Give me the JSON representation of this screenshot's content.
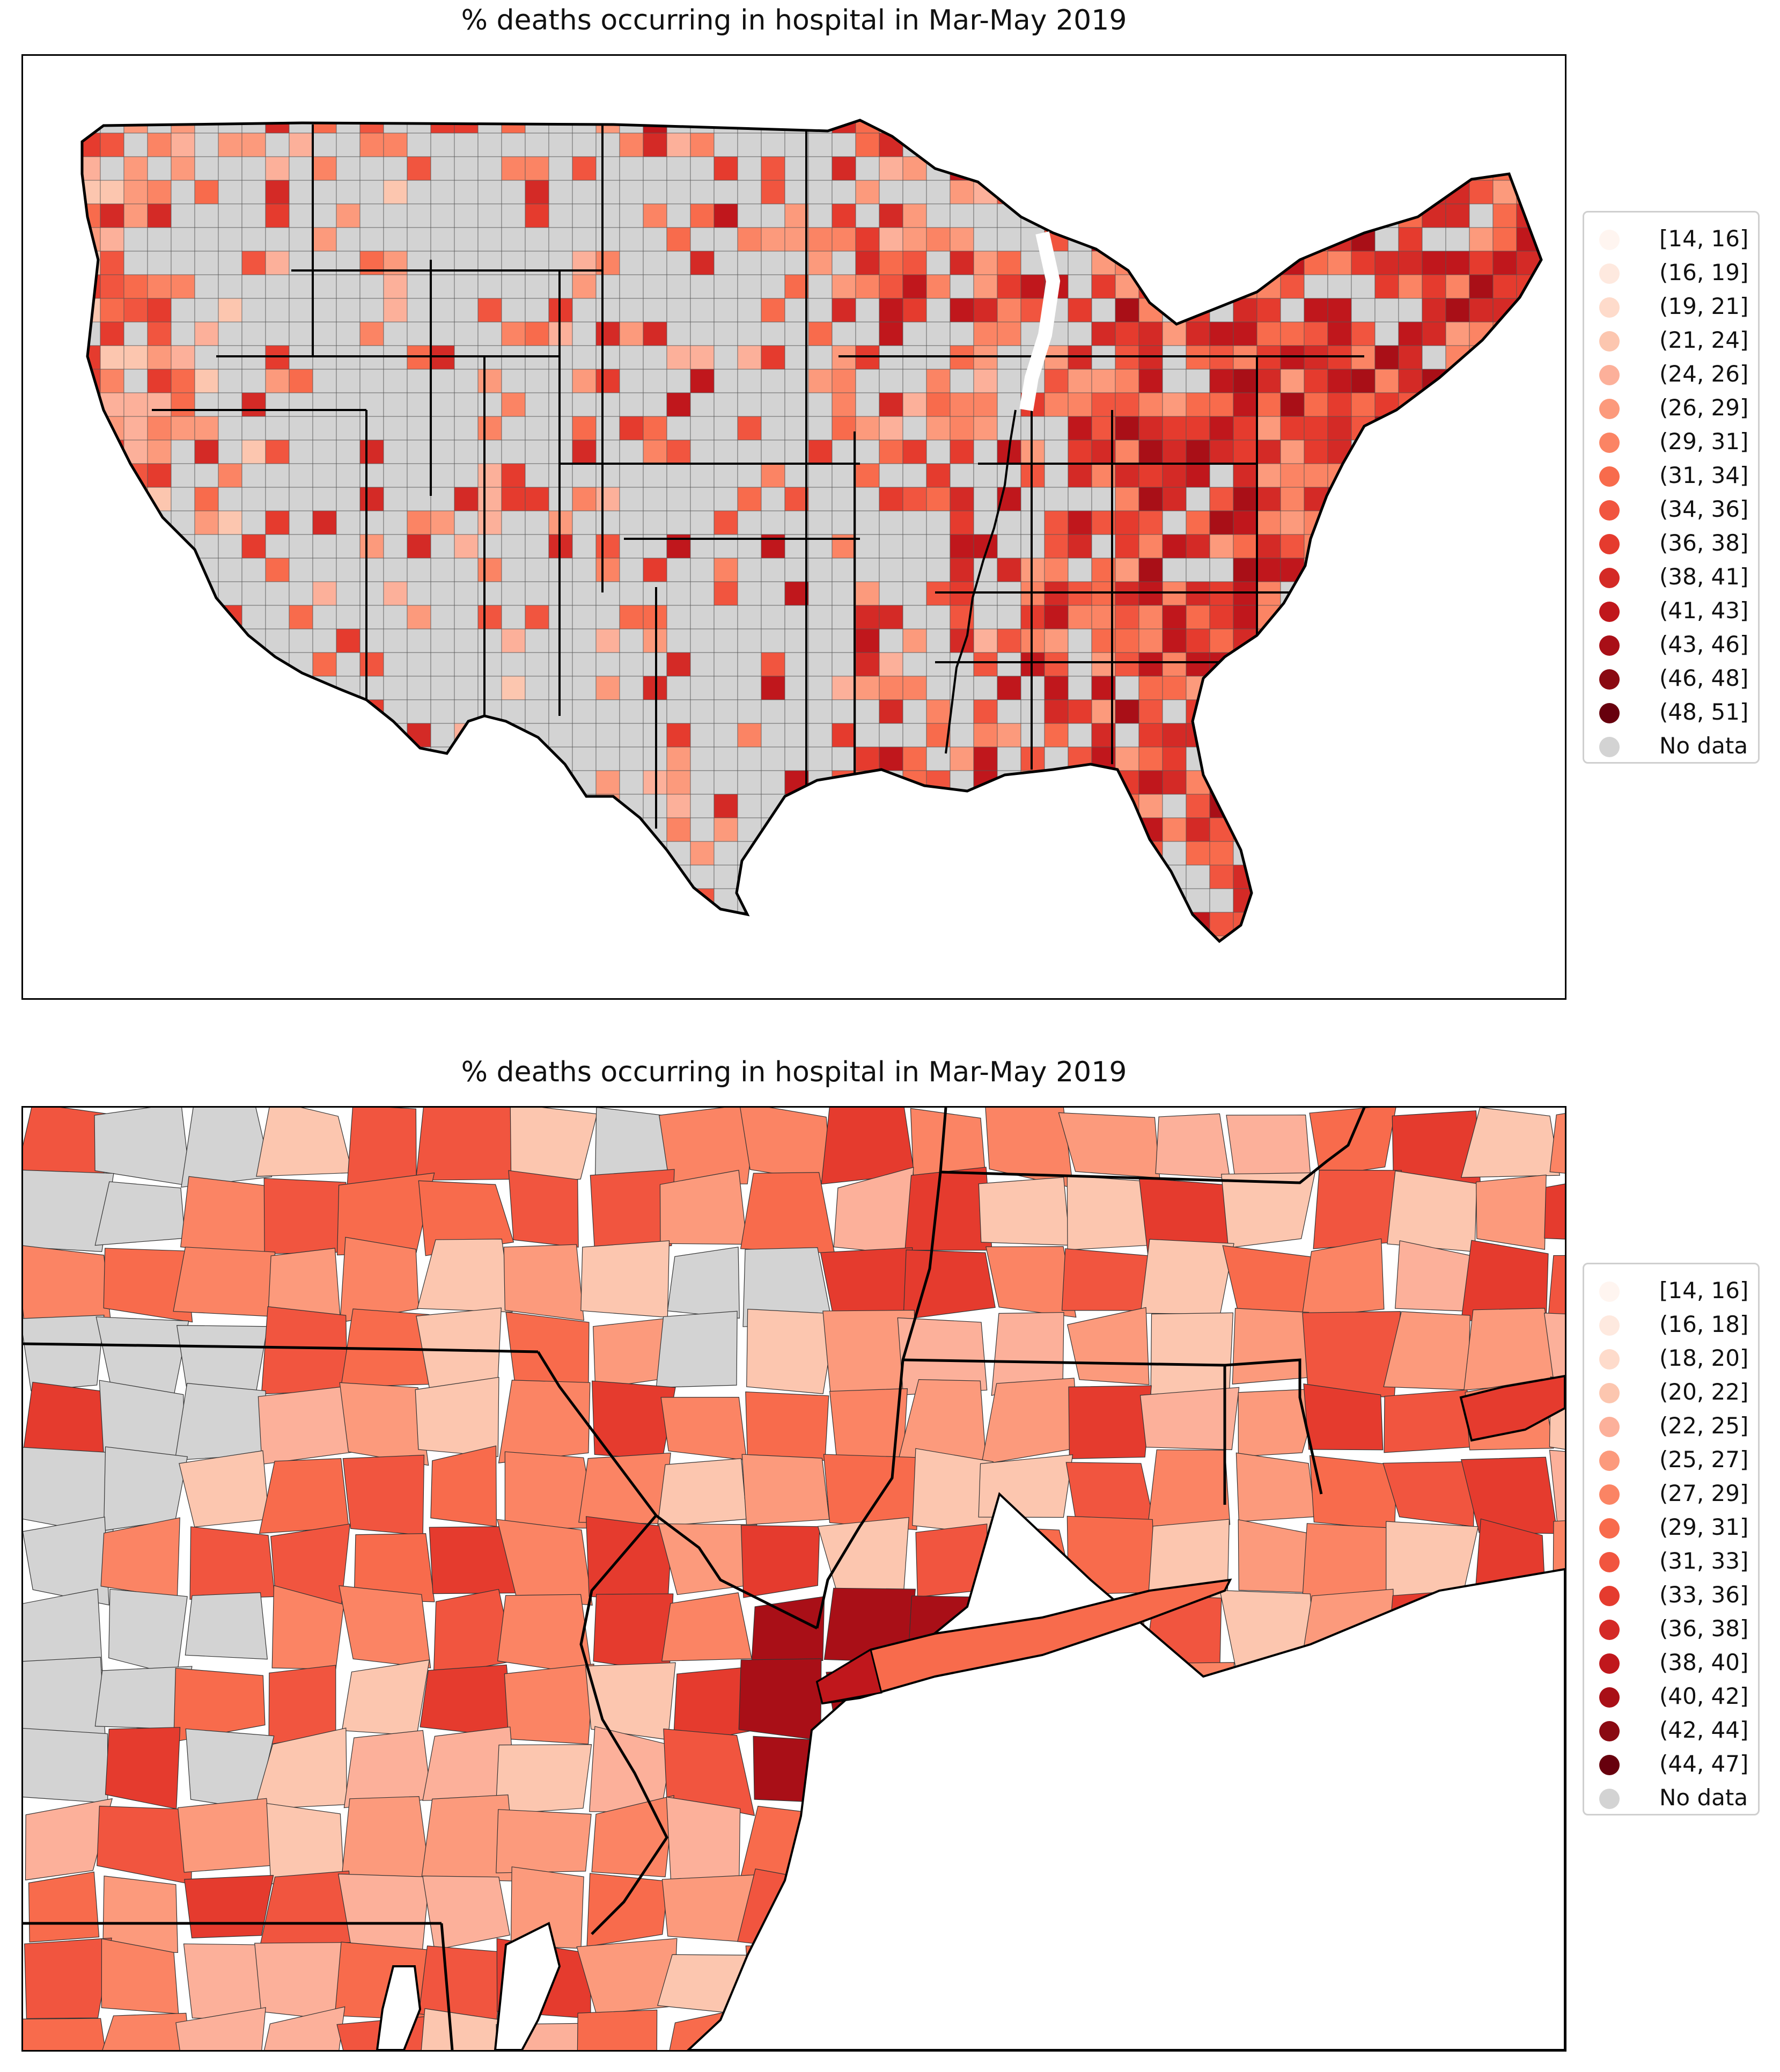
{
  "colors": {
    "no_data": "#d3d3d3",
    "border": "#000000",
    "background": "#ffffff"
  },
  "panels": [
    {
      "title": "% deaths occurring in hospital in Mar-May 2019",
      "region": "contiguous United States counties",
      "legend": [
        {
          "label": "[14, 16]",
          "color": "#fff5f0"
        },
        {
          "label": "(16, 19]",
          "color": "#fee9df"
        },
        {
          "label": "(19, 21]",
          "color": "#fedbcb"
        },
        {
          "label": "(21, 24]",
          "color": "#fcc6af"
        },
        {
          "label": "(24, 26]",
          "color": "#fcb09a"
        },
        {
          "label": "(26, 29]",
          "color": "#fc9a7c"
        },
        {
          "label": "(29, 31]",
          "color": "#fb8464"
        },
        {
          "label": "(31, 34]",
          "color": "#f86b4c"
        },
        {
          "label": "(34, 36]",
          "color": "#f1553f"
        },
        {
          "label": "(36, 38]",
          "color": "#e53b2e"
        },
        {
          "label": "(38, 41]",
          "color": "#d42a26"
        },
        {
          "label": "(41, 43]",
          "color": "#c0171c"
        },
        {
          "label": "(43, 46]",
          "color": "#a90f17"
        },
        {
          "label": "(46, 48]",
          "color": "#8a0a12"
        },
        {
          "label": "(48, 51]",
          "color": "#67000d"
        },
        {
          "label": "No data",
          "color": "#d3d3d3"
        }
      ]
    },
    {
      "title": "% deaths occurring in hospital in Mar-May 2019",
      "region": "New York metro / Northeast counties",
      "legend": [
        {
          "label": "[14, 16]",
          "color": "#fff5f0"
        },
        {
          "label": "(16, 18]",
          "color": "#fee9df"
        },
        {
          "label": "(18, 20]",
          "color": "#fedbcb"
        },
        {
          "label": "(20, 22]",
          "color": "#fcc6af"
        },
        {
          "label": "(22, 25]",
          "color": "#fcb09a"
        },
        {
          "label": "(25, 27]",
          "color": "#fc9a7c"
        },
        {
          "label": "(27, 29]",
          "color": "#fb8464"
        },
        {
          "label": "(29, 31]",
          "color": "#f86b4c"
        },
        {
          "label": "(31, 33]",
          "color": "#f1553f"
        },
        {
          "label": "(33, 36]",
          "color": "#e53b2e"
        },
        {
          "label": "(36, 38]",
          "color": "#d42a26"
        },
        {
          "label": "(38, 40]",
          "color": "#c0171c"
        },
        {
          "label": "(40, 42]",
          "color": "#a90f17"
        },
        {
          "label": "(42, 44]",
          "color": "#8a0a12"
        },
        {
          "label": "(44, 47]",
          "color": "#67000d"
        },
        {
          "label": "No data",
          "color": "#d3d3d3"
        }
      ]
    }
  ]
}
